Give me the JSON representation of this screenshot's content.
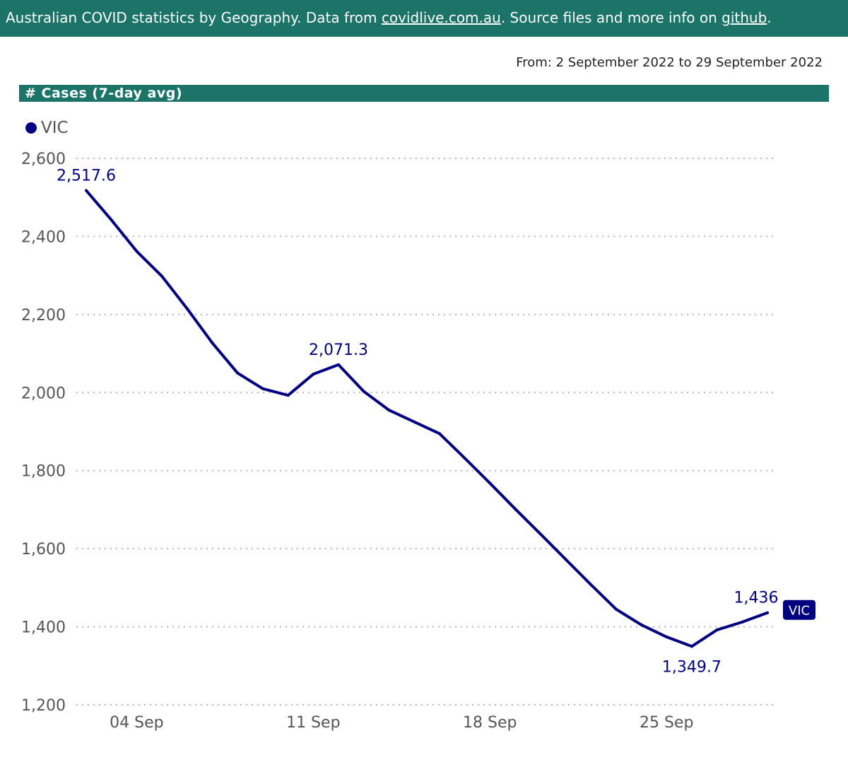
{
  "banner": {
    "prefix": "Australian COVID statistics by Geography. Data from ",
    "link1": "covidlive.com.au",
    "middle": ". Source files and more info on ",
    "link2": "github",
    "suffix": "."
  },
  "date_range": "From: 2 September 2022 to 29 September 2022",
  "panel_title": "# Cases (7-day avg)",
  "colors": {
    "banner": "#1b7467",
    "series": "#000080",
    "grid": "#b8b8b8",
    "tick_text": "#555555"
  },
  "chart_data": {
    "type": "line",
    "title": "# Cases (7-day avg)",
    "xlabel": "",
    "ylabel": "",
    "ylim": [
      1200,
      2600
    ],
    "yticks": [
      1200,
      1400,
      1600,
      1800,
      2000,
      2200,
      2400,
      2600
    ],
    "ytick_labels": [
      "1,200",
      "1,400",
      "1,600",
      "1,800",
      "2,000",
      "2,200",
      "2,400",
      "2,600"
    ],
    "x_days": [
      2,
      29
    ],
    "xticks": [
      {
        "day": 4,
        "label": "04 Sep"
      },
      {
        "day": 11,
        "label": "11 Sep"
      },
      {
        "day": 18,
        "label": "18 Sep"
      },
      {
        "day": 25,
        "label": "25 Sep"
      }
    ],
    "legend": {
      "position": "top-left",
      "entries": [
        "VIC"
      ]
    },
    "series": [
      {
        "name": "VIC",
        "end_label": "VIC",
        "x": [
          2,
          3,
          4,
          5,
          6,
          7,
          8,
          9,
          10,
          11,
          12,
          13,
          14,
          15,
          16,
          17,
          18,
          19,
          20,
          21,
          22,
          23,
          24,
          25,
          26,
          27,
          28,
          29
        ],
        "values": [
          2517.6,
          2442,
          2362,
          2298,
          2215,
          2127,
          2050,
          2010,
          1993,
          2047,
          2071.3,
          2003,
          1955,
          1925,
          1895,
          1832,
          1768,
          1702,
          1638,
          1573,
          1508,
          1445,
          1405,
          1374,
          1349.7,
          1392,
          1412,
          1436
        ],
        "annotations": [
          {
            "index": 0,
            "label": "2,517.6",
            "pos": "above"
          },
          {
            "index": 10,
            "label": "2,071.3",
            "pos": "above"
          },
          {
            "index": 24,
            "label": "1,349.7",
            "pos": "below"
          },
          {
            "index": 27,
            "label": "1,436",
            "pos": "above-left"
          }
        ]
      }
    ]
  }
}
